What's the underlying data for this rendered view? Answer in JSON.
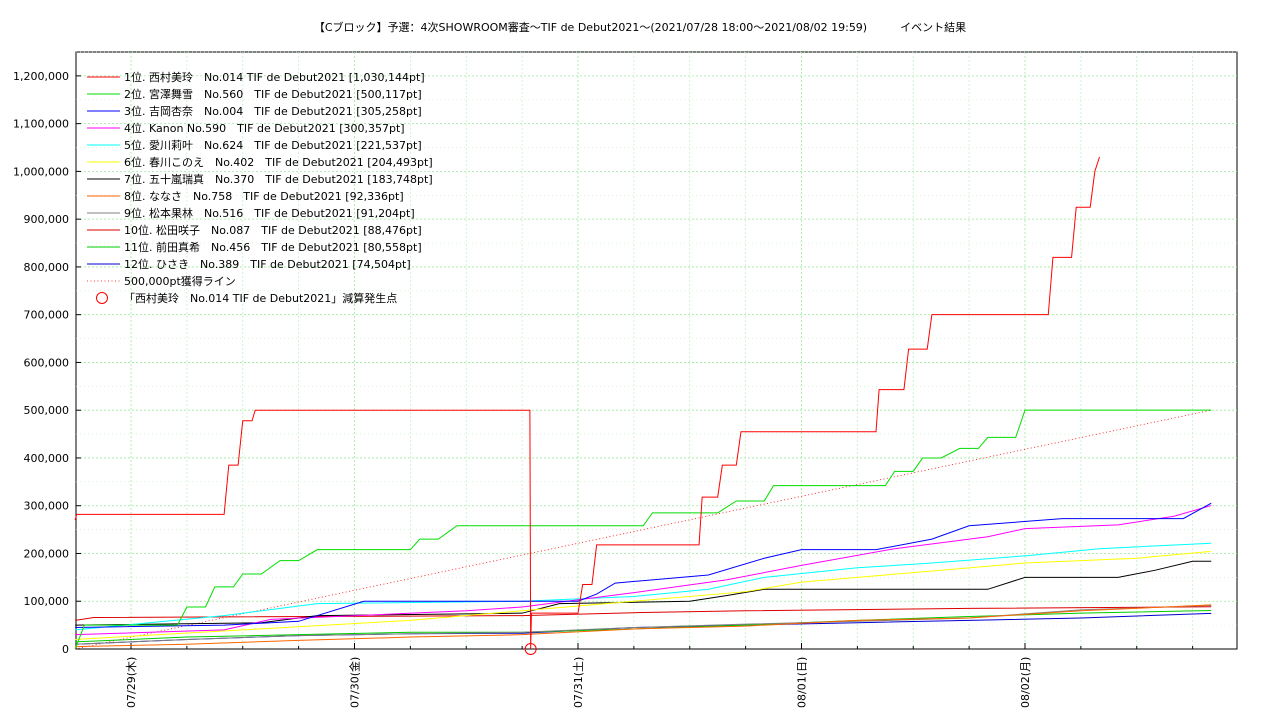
{
  "chart_data": {
    "type": "line",
    "title": "【Cブロック】予選：4次SHOWROOM審査〜TIF de Debut2021〜(2021/07/28 18:00〜2021/08/02 19:59)　　　イベント結果",
    "xlabel": "",
    "ylabel": "",
    "x_ticks": [
      "07/29(木)",
      "07/30(金)",
      "07/31(土)",
      "08/01(日)",
      "08/02(月)"
    ],
    "x_range": [
      "2021-07-28 18:00",
      "2021-08-02 19:59"
    ],
    "ylim": [
      0,
      1250000
    ],
    "y_ticks": [
      "0",
      "100,000",
      "200,000",
      "300,000",
      "400,000",
      "500,000",
      "600,000",
      "700,000",
      "800,000",
      "900,000",
      "1,000,000",
      "1,100,000",
      "1,200,000"
    ],
    "grid": true,
    "legend_position": "top-left",
    "series": [
      {
        "name": "1位. 西村美玲　No.014  TIF de Debut2021 [1,030,144pt]",
        "color": "#ff0000",
        "points": [
          [
            "07/28 18:00",
            270000
          ],
          [
            "07/28 18:10",
            282000
          ],
          [
            "07/29 10:00",
            282000
          ],
          [
            "07/29 10:30",
            385000
          ],
          [
            "07/29 11:30",
            385000
          ],
          [
            "07/29 12:00",
            478000
          ],
          [
            "07/29 13:00",
            478000
          ],
          [
            "07/29 13:20",
            500000
          ],
          [
            "07/30 18:50",
            500000
          ],
          [
            "07/30 18:55",
            0
          ],
          [
            "07/30 19:00",
            75000
          ],
          [
            "07/31 00:00",
            75000
          ],
          [
            "07/31 00:30",
            135000
          ],
          [
            "07/31 01:30",
            135000
          ],
          [
            "07/31 02:00",
            218000
          ],
          [
            "07/31 13:00",
            218000
          ],
          [
            "07/31 13:20",
            318000
          ],
          [
            "07/31 15:00",
            318000
          ],
          [
            "07/31 15:30",
            385000
          ],
          [
            "07/31 17:00",
            385000
          ],
          [
            "07/31 17:30",
            455000
          ],
          [
            "08/01 08:00",
            455000
          ],
          [
            "08/01 08:20",
            543000
          ],
          [
            "08/01 11:00",
            543000
          ],
          [
            "08/01 11:30",
            628000
          ],
          [
            "08/01 13:30",
            628000
          ],
          [
            "08/01 14:00",
            700000
          ],
          [
            "08/02 02:30",
            700000
          ],
          [
            "08/02 03:00",
            820000
          ],
          [
            "08/02 05:00",
            820000
          ],
          [
            "08/02 05:30",
            925000
          ],
          [
            "08/02 07:00",
            925000
          ],
          [
            "08/02 07:30",
            1000000
          ],
          [
            "08/02 08:00",
            1030144
          ]
        ]
      },
      {
        "name": "2位. 宮澤舞雪　No.560　TIF de Debut2021 [500,117pt]",
        "color": "#00dd00",
        "points": [
          [
            "07/28 18:00",
            0
          ],
          [
            "07/28 19:00",
            50000
          ],
          [
            "07/29 05:00",
            50000
          ],
          [
            "07/29 06:00",
            88000
          ],
          [
            "07/29 08:00",
            88000
          ],
          [
            "07/29 09:00",
            130000
          ],
          [
            "07/29 11:00",
            130000
          ],
          [
            "07/29 12:00",
            157000
          ],
          [
            "07/29 14:00",
            157000
          ],
          [
            "07/29 16:00",
            185000
          ],
          [
            "07/29 18:00",
            185000
          ],
          [
            "07/29 20:00",
            208000
          ],
          [
            "07/30 06:00",
            208000
          ],
          [
            "07/30 07:00",
            230000
          ],
          [
            "07/30 09:00",
            230000
          ],
          [
            "07/30 11:00",
            258000
          ],
          [
            "07/31 07:00",
            258000
          ],
          [
            "07/31 08:00",
            285000
          ],
          [
            "07/31 15:00",
            285000
          ],
          [
            "07/31 17:00",
            310000
          ],
          [
            "07/31 20:00",
            310000
          ],
          [
            "07/31 21:00",
            342000
          ],
          [
            "08/01 09:00",
            342000
          ],
          [
            "08/01 10:00",
            372000
          ],
          [
            "08/01 12:00",
            372000
          ],
          [
            "08/01 13:00",
            400000
          ],
          [
            "08/01 15:00",
            400000
          ],
          [
            "08/01 17:00",
            420000
          ],
          [
            "08/01 19:00",
            420000
          ],
          [
            "08/01 20:00",
            443000
          ],
          [
            "08/01 23:00",
            443000
          ],
          [
            "08/02 00:00",
            500117
          ],
          [
            "08/02 20:00",
            500117
          ]
        ]
      },
      {
        "name": "3位. 吉岡杏奈　No.004　TIF de Debut2021 [305,258pt]",
        "color": "#0000ff",
        "points": [
          [
            "07/28 18:00",
            45000
          ],
          [
            "07/29 10:00",
            50000
          ],
          [
            "07/29 18:00",
            58000
          ],
          [
            "07/30 01:00",
            100000
          ],
          [
            "07/31 00:00",
            100000
          ],
          [
            "07/31 02:00",
            115000
          ],
          [
            "07/31 04:00",
            138000
          ],
          [
            "07/31 14:00",
            155000
          ],
          [
            "07/31 20:00",
            190000
          ],
          [
            "08/01 00:00",
            208000
          ],
          [
            "08/01 08:00",
            208000
          ],
          [
            "08/01 14:00",
            230000
          ],
          [
            "08/01 18:00",
            258000
          ],
          [
            "08/02 04:00",
            273000
          ],
          [
            "08/02 17:00",
            273000
          ],
          [
            "08/02 20:00",
            305258
          ]
        ]
      },
      {
        "name": "4位. Kanon  No.590　TIF de Debut2021 [300,357pt]",
        "color": "#ff00ff",
        "points": [
          [
            "07/28 18:00",
            30000
          ],
          [
            "07/29 10:00",
            40000
          ],
          [
            "07/29 15:00",
            62000
          ],
          [
            "07/30 12:00",
            80000
          ],
          [
            "07/30 18:00",
            88000
          ],
          [
            "07/31 06:00",
            118000
          ],
          [
            "07/31 16:00",
            145000
          ],
          [
            "08/01 00:00",
            175000
          ],
          [
            "08/01 10:00",
            210000
          ],
          [
            "08/01 20:00",
            235000
          ],
          [
            "08/02 00:00",
            252000
          ],
          [
            "08/02 10:00",
            260000
          ],
          [
            "08/02 16:00",
            278000
          ],
          [
            "08/02 20:00",
            300357
          ]
        ]
      },
      {
        "name": "5位. 愛川莉叶　No.624　TIF de Debut2021 [221,537pt]",
        "color": "#00ffff",
        "points": [
          [
            "07/28 18:00",
            40000
          ],
          [
            "07/29 10:00",
            70000
          ],
          [
            "07/29 20:00",
            95000
          ],
          [
            "07/30 18:00",
            100000
          ],
          [
            "07/31 06:00",
            110000
          ],
          [
            "07/31 14:00",
            125000
          ],
          [
            "07/31 20:00",
            150000
          ],
          [
            "08/01 06:00",
            170000
          ],
          [
            "08/01 14:00",
            180000
          ],
          [
            "08/02 00:00",
            195000
          ],
          [
            "08/02 08:00",
            210000
          ],
          [
            "08/02 20:00",
            221537
          ]
        ]
      },
      {
        "name": "6位. 春川このえ　No.402　TIF de Debut2021 [204,493pt]",
        "color": "#ffff00",
        "points": [
          [
            "07/28 18:00",
            20000
          ],
          [
            "07/29 12:00",
            40000
          ],
          [
            "07/30 06:00",
            60000
          ],
          [
            "07/30 18:00",
            80000
          ],
          [
            "07/31 06:00",
            100000
          ],
          [
            "07/31 18:00",
            120000
          ],
          [
            "08/01 00:00",
            140000
          ],
          [
            "08/01 12:00",
            160000
          ],
          [
            "08/02 00:00",
            180000
          ],
          [
            "08/02 12:00",
            190000
          ],
          [
            "08/02 20:00",
            204493
          ]
        ]
      },
      {
        "name": "7位. 五十嵐瑞真　No.370　TIF de Debut2021 [183,748pt]",
        "color": "#000000",
        "points": [
          [
            "07/28 18:00",
            50000
          ],
          [
            "07/29 14:00",
            55000
          ],
          [
            "07/29 20:00",
            70000
          ],
          [
            "07/30 18:00",
            75000
          ],
          [
            "07/30 22:00",
            95000
          ],
          [
            "07/31 12:00",
            100000
          ],
          [
            "07/31 16:00",
            112000
          ],
          [
            "07/31 20:00",
            125000
          ],
          [
            "08/01 20:00",
            125000
          ],
          [
            "08/02 00:00",
            150000
          ],
          [
            "08/02 10:00",
            150000
          ],
          [
            "08/02 14:00",
            165000
          ],
          [
            "08/02 18:00",
            183748
          ],
          [
            "08/02 20:00",
            183748
          ]
        ]
      },
      {
        "name": "8位. ななさ　No.758　TIF de Debut2021 [92,336pt]",
        "color": "#ff6600",
        "points": [
          [
            "07/28 18:00",
            5000
          ],
          [
            "07/29 06:00",
            10000
          ],
          [
            "07/29 18:00",
            18000
          ],
          [
            "07/30 06:00",
            25000
          ],
          [
            "07/30 18:00",
            30000
          ],
          [
            "07/31 06:00",
            42000
          ],
          [
            "07/31 18:00",
            48000
          ],
          [
            "08/01 06:00",
            60000
          ],
          [
            "08/01 18:00",
            65000
          ],
          [
            "08/02 06:00",
            80000
          ],
          [
            "08/02 20:00",
            92336
          ]
        ]
      },
      {
        "name": "9位. 松本果林　No.516　TIF de Debut2021 [91,204pt]",
        "color": "#808080",
        "points": [
          [
            "07/28 18:00",
            10000
          ],
          [
            "07/29 06:00",
            20000
          ],
          [
            "07/29 18:00",
            28000
          ],
          [
            "07/30 06:00",
            32000
          ],
          [
            "07/30 18:00",
            35000
          ],
          [
            "07/31 06:00",
            45000
          ],
          [
            "07/31 18:00",
            52000
          ],
          [
            "08/01 06:00",
            58000
          ],
          [
            "08/01 18:00",
            65000
          ],
          [
            "08/02 06:00",
            82000
          ],
          [
            "08/02 20:00",
            91204
          ]
        ]
      },
      {
        "name": "10位. 松田咲子　No.087　TIF de Debut2021 [88,476pt]",
        "color": "#dd0000",
        "points": [
          [
            "07/28 18:00",
            60000
          ],
          [
            "07/28 20:00",
            66000
          ],
          [
            "07/30 18:00",
            70000
          ],
          [
            "07/31 06:00",
            76000
          ],
          [
            "07/31 18:00",
            80000
          ],
          [
            "08/01 18:00",
            85000
          ],
          [
            "08/02 20:00",
            88476
          ]
        ]
      },
      {
        "name": "11位. 前田真希　No.456　TIF de Debut2021 [80,558pt]",
        "color": "#00cc00",
        "points": [
          [
            "07/28 18:00",
            15000
          ],
          [
            "07/29 06:00",
            25000
          ],
          [
            "07/29 18:00",
            30000
          ],
          [
            "07/30 06:00",
            35000
          ],
          [
            "07/30 18:00",
            35000
          ],
          [
            "07/31 06:00",
            42000
          ],
          [
            "07/31 18:00",
            50000
          ],
          [
            "08/01 06:00",
            60000
          ],
          [
            "08/01 18:00",
            68000
          ],
          [
            "08/02 06:00",
            75000
          ],
          [
            "08/02 20:00",
            80558
          ]
        ]
      },
      {
        "name": "12位. ひさき　No.389　TIF de Debut2021 [74,504pt]",
        "color": "#0000cc",
        "points": [
          [
            "07/28 18:00",
            10000
          ],
          [
            "07/29 06:00",
            20000
          ],
          [
            "07/29 18:00",
            28000
          ],
          [
            "07/30 06:00",
            32000
          ],
          [
            "07/30 18:00",
            33000
          ],
          [
            "07/31 06:00",
            45000
          ],
          [
            "07/31 18:00",
            50000
          ],
          [
            "08/01 06:00",
            55000
          ],
          [
            "08/01 18:00",
            60000
          ],
          [
            "08/02 06:00",
            65000
          ],
          [
            "08/02 20:00",
            74504
          ]
        ]
      }
    ],
    "reference_line": {
      "name": "500,000pt獲得ライン",
      "color": "#ff0000",
      "points": [
        [
          "07/28 18:00",
          0
        ],
        [
          "08/02 19:59",
          500000
        ]
      ]
    },
    "marker_legend": {
      "name": "「西村美玲　No.014  TIF de Debut2021」減算発生点",
      "color": "#ff0000"
    },
    "subtraction_marker": {
      "x": "07/30 18:55",
      "y": 0
    }
  }
}
